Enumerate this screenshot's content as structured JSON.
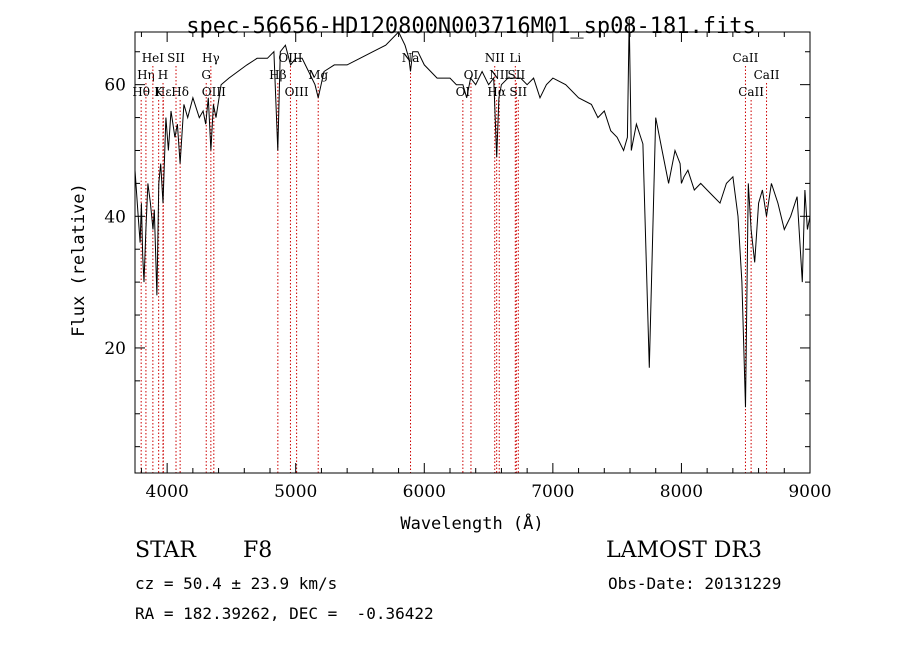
{
  "chart_data": {
    "type": "line",
    "title": "spec-56656-HD120800N003716M01_sp08-181.fits",
    "xlabel": "Wavelength (Å)",
    "ylabel": "Flux (relative)",
    "xlim": [
      3750,
      9000
    ],
    "ylim": [
      1,
      68
    ],
    "xticks": [
      4000,
      5000,
      6000,
      7000,
      8000,
      9000
    ],
    "yticks": [
      20,
      40,
      60
    ],
    "grid": false,
    "series": [
      {
        "x": [
          3750,
          3775,
          3790,
          3800,
          3810,
          3820,
          3835,
          3850,
          3870,
          3890,
          3900,
          3920,
          3935,
          3950,
          3968,
          3990,
          4010,
          4030,
          4060,
          4080,
          4101,
          4130,
          4160,
          4200,
          4250,
          4280,
          4300,
          4320,
          4340,
          4360,
          4380,
          4420,
          4480,
          4550,
          4620,
          4700,
          4780,
          4830,
          4861,
          4880,
          4920,
          4960,
          5000,
          5050,
          5100,
          5150,
          5175,
          5220,
          5300,
          5400,
          5500,
          5600,
          5700,
          5800,
          5850,
          5880,
          5893,
          5910,
          5950,
          6000,
          6050,
          6100,
          6150,
          6200,
          6250,
          6300,
          6330,
          6360,
          6400,
          6450,
          6500,
          6540,
          6563,
          6580,
          6600,
          6650,
          6700,
          6750,
          6800,
          6850,
          6900,
          6950,
          7000,
          7100,
          7200,
          7300,
          7350,
          7400,
          7450,
          7500,
          7550,
          7580,
          7594,
          7610,
          7650,
          7700,
          7750,
          7800,
          7850,
          7900,
          7950,
          7990,
          8000,
          8020,
          8050,
          8100,
          8150,
          8200,
          8250,
          8300,
          8350,
          8400,
          8440,
          8470,
          8498,
          8520,
          8542,
          8570,
          8600,
          8630,
          8662,
          8700,
          8750,
          8800,
          8850,
          8900,
          8940,
          8960,
          8980,
          9000
        ],
        "y": [
          47,
          40,
          36,
          42,
          34,
          30,
          38,
          45,
          42,
          38,
          41,
          28,
          45,
          48,
          42,
          55,
          50,
          56,
          52,
          54,
          48,
          57,
          55,
          58,
          55,
          56,
          54,
          58,
          50,
          57,
          55,
          60,
          61,
          62,
          63,
          64,
          64,
          65,
          50,
          65,
          66,
          63,
          64,
          64,
          62,
          60,
          58,
          62,
          63,
          63,
          64,
          65,
          66,
          68,
          66,
          64,
          62,
          65,
          65,
          63,
          62,
          61,
          61,
          61,
          60,
          60,
          58,
          61,
          60,
          62,
          60,
          61,
          49,
          58,
          60,
          61,
          61,
          61,
          60,
          61,
          58,
          60,
          61,
          60,
          58,
          57,
          55,
          56,
          53,
          52,
          50,
          52,
          70,
          50,
          54,
          51,
          17,
          55,
          50,
          45,
          50,
          48,
          45,
          46,
          47,
          44,
          45,
          44,
          43,
          42,
          45,
          46,
          40,
          30,
          11,
          45,
          38,
          33,
          42,
          44,
          40,
          45,
          42,
          38,
          40,
          43,
          30,
          44,
          38,
          40
        ]
      }
    ],
    "spectral_lines": [
      {
        "label": "Hε",
        "x": 3970,
        "row": 3
      },
      {
        "label": "Hη",
        "x": 3835,
        "row": 2
      },
      {
        "label": "Hθ",
        "x": 3798,
        "row": 3
      },
      {
        "label": "HeI",
        "x": 3889,
        "row": 1
      },
      {
        "label": "SII",
        "x": 4069,
        "row": 1
      },
      {
        "label": "H",
        "x": 3968,
        "row": 2
      },
      {
        "label": "K",
        "x": 3934,
        "row": 3
      },
      {
        "label": "Hδ",
        "x": 4101,
        "row": 3
      },
      {
        "label": "Hγ",
        "x": 4340,
        "row": 1
      },
      {
        "label": "G",
        "x": 4304,
        "row": 2
      },
      {
        "label": "OIII",
        "x": 4363,
        "row": 3
      },
      {
        "label": "OIII",
        "x": 4959,
        "row": 1
      },
      {
        "label": "Hβ",
        "x": 4861,
        "row": 2
      },
      {
        "label": "OIII",
        "x": 5007,
        "row": 3
      },
      {
        "label": "Mg",
        "x": 5175,
        "row": 2
      },
      {
        "label": "Na",
        "x": 5893,
        "row": 1
      },
      {
        "label": "OI",
        "x": 6363,
        "row": 2
      },
      {
        "label": "OI",
        "x": 6300,
        "row": 3
      },
      {
        "label": "NII",
        "x": 6548,
        "row": 1
      },
      {
        "label": "NII",
        "x": 6583,
        "row": 2
      },
      {
        "label": "Hα",
        "x": 6563,
        "row": 3
      },
      {
        "label": "Li",
        "x": 6708,
        "row": 1
      },
      {
        "label": "SII",
        "x": 6716,
        "row": 2
      },
      {
        "label": "SII",
        "x": 6731,
        "row": 3
      },
      {
        "label": "CaII",
        "x": 8498,
        "row": 1
      },
      {
        "label": "CaII",
        "x": 8662,
        "row": 2
      },
      {
        "label": "CaII",
        "x": 8542,
        "row": 3
      }
    ],
    "line_color": "#cc0000"
  },
  "info": {
    "class_label": "STAR",
    "subclass_label": "F8",
    "survey_label": "LAMOST DR3",
    "cz_text": "cz = 50.4 ± 23.9 km/s",
    "obs_date_text": "Obs-Date: 20131229",
    "radec_text": "RA = 182.39262, DEC =  -0.36422"
  }
}
